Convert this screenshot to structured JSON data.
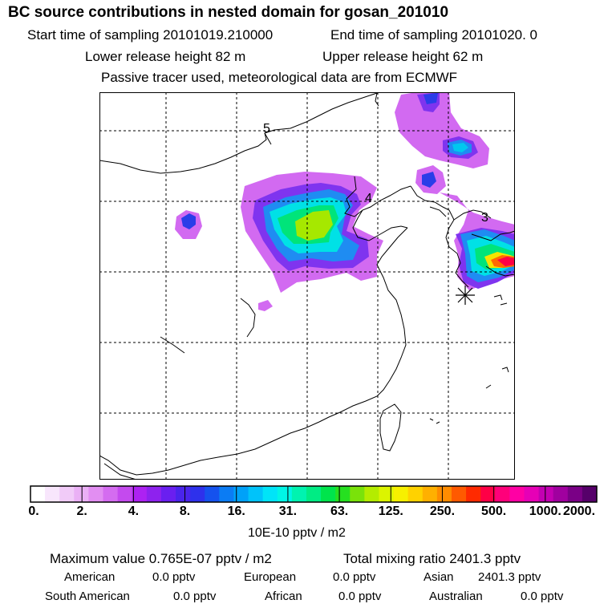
{
  "header": {
    "title": "BC  source contributions in nested domain for gosan_201010",
    "start_time": "Start time of sampling 20101019.210000",
    "end_time": "End time of sampling 20101020.     0",
    "lower_release": "Lower release height   82 m",
    "upper_release": "Upper release height   62 m",
    "tracer_note": "Passive tracer used, meteorological data are from ECMWF"
  },
  "map": {
    "day_labels": [
      "5",
      "4",
      "3"
    ],
    "station_marker": "star-marker-icon"
  },
  "colorbar": {
    "ticks": [
      "0.",
      "2.",
      "4.",
      "8.",
      "16.",
      "31.",
      "63.",
      "125.",
      "250.",
      "500.",
      "1000.",
      "2000."
    ],
    "colors": [
      "#ffffff",
      "#f8e6fc",
      "#f1cbf8",
      "#eab0f5",
      "#e28ef2",
      "#d46cf0",
      "#c44aee",
      "#ad22f2",
      "#8e22ee",
      "#6a1ff0",
      "#4a24ec",
      "#2e31ec",
      "#1552ee",
      "#0b7cf4",
      "#00a1f8",
      "#00c3fa",
      "#00e4f8",
      "#00f5e6",
      "#00f3b0",
      "#00ec84",
      "#00e44c",
      "#26e020",
      "#7ae20a",
      "#b4ec00",
      "#dcf400",
      "#f7f000",
      "#ffd200",
      "#ffb000",
      "#ff8c00",
      "#ff5a00",
      "#ff2a00",
      "#ff0046",
      "#ff007a",
      "#ff00a4",
      "#e600b6",
      "#c300b2",
      "#a0009f",
      "#7a0086",
      "#56006a"
    ],
    "units": "10E-10 pptv / m2"
  },
  "summary": {
    "max_value": "Maximum value  0.765E-07 pptv / m2",
    "total_mixing": "Total mixing ratio     2401.3 pptv",
    "american_label": "American",
    "american_value": "0.0 pptv",
    "european_label": "European",
    "european_value": "0.0 pptv",
    "asian_label": "Asian",
    "asian_value": "2401.3 pptv",
    "south_american_label": "South American",
    "south_american_value": "0.0 pptv",
    "african_label": "African",
    "african_value": "0.0 pptv",
    "australian_label": "Australian",
    "australian_value": "0.0 pptv"
  }
}
